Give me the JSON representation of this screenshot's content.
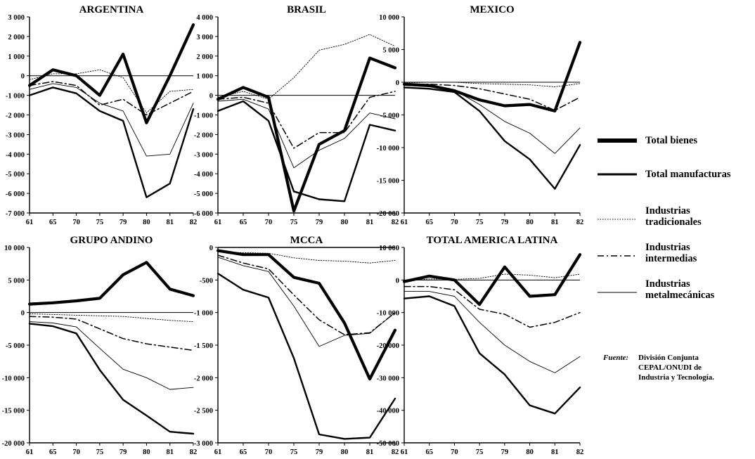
{
  "legend": [
    {
      "label": "Total bienes",
      "key": "total_bienes"
    },
    {
      "label": "Total manufacturas",
      "key": "total_manufacturas"
    },
    {
      "label": "Industrias\ntradicionales",
      "key": "tradicionales"
    },
    {
      "label": "Industrias\nintermedias",
      "key": "intermedias"
    },
    {
      "label": "Industrias\nmetalmecánicas",
      "key": "metalmecanicas"
    }
  ],
  "source": {
    "label": "Fuente:",
    "text": "División Conjunta\nCEPAL/ONUDI de\nIndustria y Tecnología."
  },
  "chart_data": [
    {
      "type": "line",
      "title": "ARGENTINA",
      "categories": [
        "61",
        "65",
        "70",
        "75",
        "79",
        "80",
        "81",
        "82"
      ],
      "ylim": [
        -7000,
        3000
      ],
      "yticks": [
        3000,
        2000,
        1000,
        0,
        -1000,
        -2000,
        -3000,
        -4000,
        -5000,
        -6000,
        -7000
      ],
      "yticklabels": [
        "3 000",
        "2 000",
        "1 000",
        "0",
        "-1 000",
        "-2 000",
        "-3 000",
        "-4 000",
        "-5 000",
        "-6 000",
        "-7 000"
      ],
      "series": [
        {
          "name": "Total bienes",
          "values": [
            -500,
            300,
            0,
            -1000,
            1100,
            -2400,
            0,
            2600
          ]
        },
        {
          "name": "Total manufacturas",
          "values": [
            -1000,
            -600,
            -900,
            -1800,
            -2300,
            -6200,
            -5500,
            -1700
          ]
        },
        {
          "name": "Industrias tradicionales",
          "values": [
            -200,
            100,
            100,
            300,
            -100,
            -1900,
            -800,
            -700
          ]
        },
        {
          "name": "Industrias intermedias",
          "values": [
            -500,
            -300,
            -500,
            -1500,
            -1200,
            -2000,
            -1400,
            -800
          ]
        },
        {
          "name": "Industrias metalmecánicas",
          "values": [
            -700,
            -400,
            -600,
            -1400,
            -1800,
            -4100,
            -4000,
            -1400
          ]
        }
      ]
    },
    {
      "type": "line",
      "title": "BRASIL",
      "categories": [
        "61",
        "65",
        "70",
        "75",
        "79",
        "80",
        "81",
        "82"
      ],
      "ylim": [
        -6000,
        4000
      ],
      "yticks": [
        4000,
        3000,
        2000,
        1000,
        0,
        -1000,
        -2000,
        -3000,
        -4000,
        -5000,
        -6000
      ],
      "yticklabels": [
        "4 000",
        "3 000",
        "2 000",
        "1 000",
        "0",
        "-1 000",
        "-2 000",
        "-3 000",
        "-4 000",
        "-5 000",
        "-6 000"
      ],
      "series": [
        {
          "name": "Total bienes",
          "values": [
            -200,
            400,
            -100,
            -5900,
            -2500,
            -1800,
            1900,
            1400
          ]
        },
        {
          "name": "Total manufacturas",
          "values": [
            -800,
            -300,
            -1300,
            -4900,
            -5300,
            -5400,
            -1500,
            -1800
          ]
        },
        {
          "name": "Industrias tradicionales",
          "values": [
            -100,
            200,
            -200,
            900,
            2300,
            2600,
            3100,
            2500
          ]
        },
        {
          "name": "Industrias intermedias",
          "values": [
            -200,
            -100,
            -400,
            -2700,
            -1900,
            -1900,
            -100,
            200
          ]
        },
        {
          "name": "Industrias metalmecánicas",
          "values": [
            -300,
            -200,
            -700,
            -3700,
            -2800,
            -2200,
            -900,
            -1200
          ]
        }
      ]
    },
    {
      "type": "line",
      "title": "MEXICO",
      "categories": [
        "61",
        "65",
        "70",
        "75",
        "79",
        "80",
        "81",
        "82"
      ],
      "ylim": [
        -20000,
        10000
      ],
      "yticks": [
        10000,
        5000,
        0,
        -5000,
        -10000,
        -15000,
        -20000
      ],
      "yticklabels": [
        "10 000",
        "5 000",
        "0",
        "-5 000",
        "-10 000",
        "-15 000",
        "-20 000"
      ],
      "series": [
        {
          "name": "Total bienes",
          "values": [
            -300,
            -500,
            -1300,
            -2700,
            -3600,
            -3400,
            -4400,
            6100
          ]
        },
        {
          "name": "Total manufacturas",
          "values": [
            -800,
            -1000,
            -1500,
            -4400,
            -9000,
            -11800,
            -16300,
            -9600
          ]
        },
        {
          "name": "Industrias tradicionales",
          "values": [
            -100,
            0,
            0,
            -200,
            -300,
            -400,
            -700,
            -200
          ]
        },
        {
          "name": "Industrias intermedias",
          "values": [
            -300,
            -300,
            -500,
            -1000,
            -1800,
            -2600,
            -4300,
            -2300
          ]
        },
        {
          "name": "Industrias metalmecánicas",
          "values": [
            -500,
            -700,
            -1200,
            -3400,
            -6000,
            -7800,
            -10900,
            -7000
          ]
        }
      ]
    },
    {
      "type": "line",
      "title": "GRUPO ANDINO",
      "categories": [
        "61",
        "65",
        "70",
        "75",
        "79",
        "80",
        "81",
        "82"
      ],
      "ylim": [
        -20000,
        10000
      ],
      "yticks": [
        10000,
        5000,
        0,
        -5000,
        -10000,
        -15000,
        -20000
      ],
      "yticklabels": [
        "10 000",
        "5 000",
        "0",
        "-5 000",
        "-10 000",
        "-15 000",
        "-20 000"
      ],
      "series": [
        {
          "name": "Total bienes",
          "values": [
            1300,
            1500,
            1800,
            2200,
            5800,
            7700,
            3600,
            2600
          ]
        },
        {
          "name": "Total manufacturas",
          "values": [
            -1700,
            -2100,
            -3200,
            -8800,
            -13400,
            -15800,
            -18300,
            -18600
          ]
        },
        {
          "name": "Industrias tradicionales",
          "values": [
            -200,
            -300,
            -400,
            -500,
            -600,
            -900,
            -1200,
            -1400
          ]
        },
        {
          "name": "Industrias intermedias",
          "values": [
            -600,
            -700,
            -1000,
            -2500,
            -4000,
            -4800,
            -5300,
            -5800
          ]
        },
        {
          "name": "Industrias metalmecánicas",
          "values": [
            -1400,
            -1600,
            -2200,
            -5500,
            -8700,
            -10000,
            -11800,
            -11500
          ]
        }
      ]
    },
    {
      "type": "line",
      "title": "MCCA",
      "categories": [
        "61",
        "65",
        "70",
        "75",
        "79",
        "80",
        "81",
        "82"
      ],
      "ylim": [
        -3000,
        0
      ],
      "yticks": [
        0,
        -500,
        -1000,
        -1500,
        -2000,
        -2500,
        -3000
      ],
      "yticklabels": [
        "0",
        "-500",
        "-1 000",
        "-1 500",
        "-2 000",
        "-2 500",
        "-3 000"
      ],
      "series": [
        {
          "name": "Total bienes",
          "values": [
            -50,
            -110,
            -110,
            -460,
            -550,
            -1160,
            -2020,
            -1270
          ]
        },
        {
          "name": "Total manufacturas",
          "values": [
            -400,
            -650,
            -770,
            -1700,
            -2870,
            -2940,
            -2920,
            -2320
          ]
        },
        {
          "name": "Industrias tradicionales",
          "values": [
            -70,
            -80,
            -90,
            -160,
            -200,
            -210,
            -240,
            -200
          ]
        },
        {
          "name": "Industrias intermedias",
          "values": [
            -120,
            -240,
            -330,
            -730,
            -1110,
            -1340,
            -1310,
            -1000
          ]
        },
        {
          "name": "Industrias metalmecánicas",
          "values": [
            -150,
            -280,
            -370,
            -900,
            -1520,
            -1350,
            -1320,
            -1000
          ]
        }
      ]
    },
    {
      "type": "line",
      "title": "TOTAL AMERICA LATINA",
      "categories": [
        "61",
        "65",
        "70",
        "75",
        "79",
        "80",
        "81",
        "82"
      ],
      "ylim": [
        -50000,
        10000
      ],
      "yticks": [
        10000,
        0,
        -10000,
        -20000,
        -30000,
        -40000,
        -50000
      ],
      "yticklabels": [
        "10 000",
        "0",
        "-10 000",
        "-20 000",
        "-30 000",
        "-40 000",
        "-50 000"
      ],
      "series": [
        {
          "name": "Total bienes",
          "values": [
            -500,
            1200,
            0,
            -7500,
            4000,
            -5000,
            -4500,
            7800
          ]
        },
        {
          "name": "Total manufacturas",
          "values": [
            -5700,
            -5000,
            -8000,
            -22500,
            -29000,
            -38500,
            -41000,
            -33000
          ]
        },
        {
          "name": "Industrias tradicionales",
          "values": [
            -200,
            300,
            200,
            500,
            1800,
            1500,
            700,
            1800
          ]
        },
        {
          "name": "Industrias intermedias",
          "values": [
            -2000,
            -2000,
            -3000,
            -9000,
            -10500,
            -14500,
            -13000,
            -10000
          ]
        },
        {
          "name": "Industrias metalmecánicas",
          "values": [
            -3500,
            -3500,
            -5000,
            -13000,
            -20000,
            -25000,
            -28500,
            -23500
          ]
        }
      ]
    }
  ]
}
